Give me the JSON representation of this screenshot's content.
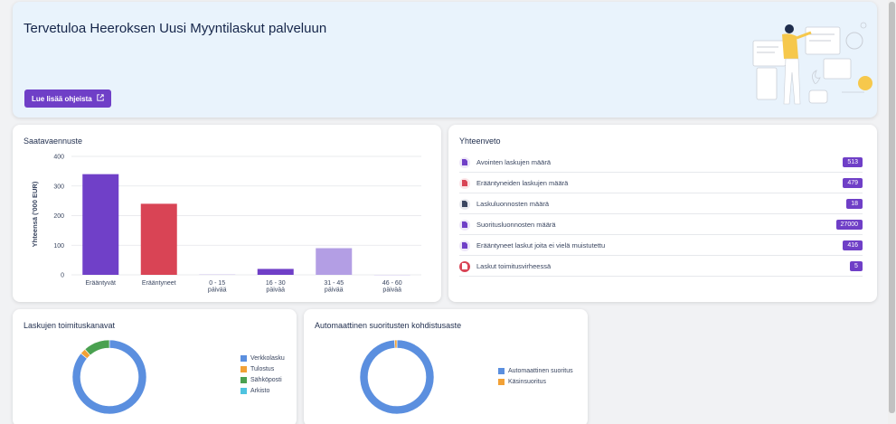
{
  "hero": {
    "title": "Tervetuloa Heeroksen Uusi Myyntilaskut palveluun",
    "button_label": "Lue lisää ohjeista"
  },
  "forecast": {
    "title": "Saatavaennuste",
    "chart_data": {
      "type": "bar",
      "categories": [
        "Erääntyvät",
        "Erääntyneet",
        "0 - 15 päivää",
        "16 - 30 päivää",
        "31 - 45 päivää",
        "46 - 60 päivää"
      ],
      "category_lines": [
        [
          "Erääntyvät"
        ],
        [
          "Erääntyneet"
        ],
        [
          "0 - 15",
          "päivää"
        ],
        [
          "16 - 30",
          "päivää"
        ],
        [
          "31 - 45",
          "päivää"
        ],
        [
          "46 - 60",
          "päivää"
        ]
      ],
      "values": [
        340,
        240,
        2,
        20,
        90,
        0
      ],
      "colors": [
        "#7040c8",
        "#d94455",
        "#d9d0ef",
        "#6f3fc7",
        "#b39ee4",
        "#d9d0ef"
      ],
      "ylabel": "Yhteensä ('000 EUR)",
      "ylim": [
        0,
        400
      ],
      "yticks": [
        "0",
        "100",
        "200",
        "300",
        "400"
      ],
      "grid": true
    }
  },
  "summary": {
    "title": "Yhteenveto",
    "rows": [
      {
        "label": "Avointen laskujen määrä",
        "value": "513",
        "icon": "document-icon",
        "icon_color": "#6f3fc7",
        "icon_bg": "#ede7f8"
      },
      {
        "label": "Erääntyneiden laskujen määrä",
        "value": "479",
        "icon": "document-icon",
        "icon_color": "#d94455",
        "icon_bg": "#fbe5e8"
      },
      {
        "label": "Laskuluonnosten määrä",
        "value": "18",
        "icon": "document-icon",
        "icon_color": "#3a4660",
        "icon_bg": "#e8eaee"
      },
      {
        "label": "Suoritusluonnosten määrä",
        "value": "27000",
        "icon": "document-icon",
        "icon_color": "#6f3fc7",
        "icon_bg": "#ede7f8"
      },
      {
        "label": "Erääntyneet laskut joita ei vielä muistutettu",
        "value": "416",
        "icon": "document-icon",
        "icon_color": "#6f3fc7",
        "icon_bg": "#ede7f8"
      },
      {
        "label": "Laskut toimitusvirheessä",
        "value": "5",
        "icon": "document-icon",
        "icon_color": "#ffffff",
        "icon_bg": "#d94455"
      }
    ]
  },
  "channels": {
    "title": "Laskujen toimituskanavat",
    "chart_data": {
      "type": "pie",
      "donut": true,
      "categories": [
        "Verkkolasku",
        "Tulostus",
        "Sähköposti",
        "Arkisto"
      ],
      "values": [
        86,
        2.5,
        11.5,
        0
      ],
      "colors": [
        "#5b8fdf",
        "#f2a136",
        "#4aa150",
        "#4ec3e0"
      ],
      "legend": "right"
    }
  },
  "auto": {
    "title": "Automaattinen suoritusten kohdistusaste",
    "chart_data": {
      "type": "pie",
      "donut": true,
      "categories": [
        "Automaattinen suoritus",
        "Käsinsuoritus"
      ],
      "values": [
        99,
        1
      ],
      "colors": [
        "#5b8fdf",
        "#f2a136"
      ],
      "legend": "right"
    }
  }
}
